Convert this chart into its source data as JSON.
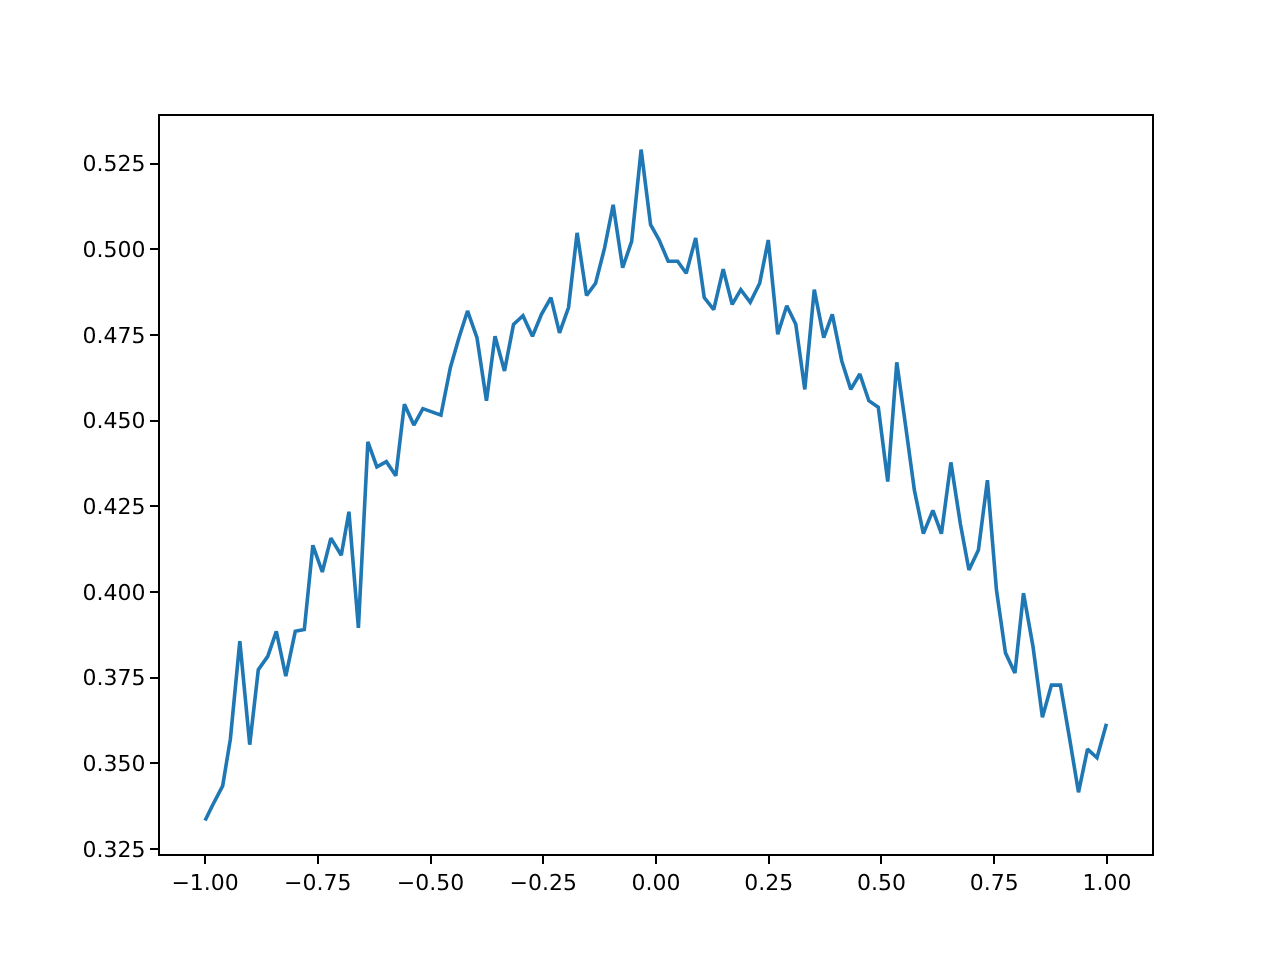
{
  "chart_data": {
    "type": "line",
    "color": "#1f77b4",
    "x": [
      -1.0,
      -0.984,
      -0.961,
      -0.944,
      -0.923,
      -0.901,
      -0.882,
      -0.861,
      -0.842,
      -0.821,
      -0.8,
      -0.78,
      -0.761,
      -0.74,
      -0.721,
      -0.698,
      -0.681,
      -0.66,
      -0.639,
      -0.619,
      -0.598,
      -0.577,
      -0.558,
      -0.537,
      -0.517,
      -0.477,
      -0.456,
      -0.437,
      -0.418,
      -0.397,
      -0.376,
      -0.357,
      -0.336,
      -0.316,
      -0.295,
      -0.274,
      -0.254,
      -0.233,
      -0.214,
      -0.194,
      -0.175,
      -0.154,
      -0.134,
      -0.114,
      -0.095,
      -0.074,
      -0.054,
      -0.033,
      -0.012,
      0.007,
      0.027,
      0.048,
      0.067,
      0.088,
      0.107,
      0.128,
      0.149,
      0.169,
      0.188,
      0.209,
      0.23,
      0.249,
      0.27,
      0.29,
      0.31,
      0.33,
      0.351,
      0.372,
      0.391,
      0.412,
      0.432,
      0.452,
      0.472,
      0.493,
      0.514,
      0.534,
      0.553,
      0.573,
      0.593,
      0.614,
      0.633,
      0.654,
      0.675,
      0.694,
      0.715,
      0.735,
      0.755,
      0.775,
      0.796,
      0.815,
      0.836,
      0.857,
      0.877,
      0.897,
      0.917,
      0.937,
      0.957,
      0.978,
      0.999
    ],
    "values": [
      0.3333,
      0.3376,
      0.3434,
      0.357,
      0.3856,
      0.3554,
      0.3773,
      0.3812,
      0.3885,
      0.3754,
      0.3885,
      0.389,
      0.4136,
      0.4058,
      0.4157,
      0.4107,
      0.4234,
      0.3895,
      0.4438,
      0.4365,
      0.438,
      0.4339,
      0.4548,
      0.4487,
      0.4535,
      0.4516,
      0.4655,
      0.4742,
      0.482,
      0.4742,
      0.4558,
      0.4746,
      0.4645,
      0.4781,
      0.4806,
      0.4746,
      0.481,
      0.4859,
      0.4756,
      0.483,
      0.5048,
      0.4865,
      0.4901,
      0.5004,
      0.513,
      0.4946,
      0.5023,
      0.5291,
      0.5072,
      0.5027,
      0.4965,
      0.4965,
      0.493,
      0.5033,
      0.4859,
      0.4824,
      0.4942,
      0.4839,
      0.4882,
      0.4845,
      0.4901,
      0.5027,
      0.4752,
      0.4835,
      0.4781,
      0.4591,
      0.4882,
      0.4742,
      0.481,
      0.4674,
      0.4591,
      0.4636,
      0.4558,
      0.4539,
      0.4322,
      0.467,
      0.449,
      0.4297,
      0.417,
      0.4238,
      0.417,
      0.4378,
      0.4199,
      0.4064,
      0.4122,
      0.4326,
      0.4006,
      0.3822,
      0.3763,
      0.3996,
      0.3841,
      0.3634,
      0.3728,
      0.3728,
      0.3574,
      0.3415,
      0.3541,
      0.3516,
      0.3615
    ],
    "xlim": [
      -1.1,
      1.1
    ],
    "xticks": [
      {
        "value": -1,
        "label": "−1.00"
      },
      {
        "value": -0.75,
        "label": "−0.75"
      },
      {
        "value": -0.5,
        "label": "−0.50"
      },
      {
        "value": -0.25,
        "label": "−0.25"
      },
      {
        "value": 0,
        "label": "0.00"
      },
      {
        "value": 0.25,
        "label": "0.25"
      },
      {
        "value": 0.5,
        "label": "0.50"
      },
      {
        "value": 0.75,
        "label": "0.75"
      },
      {
        "value": 1,
        "label": "1.00"
      }
    ],
    "ylim": [
      0.3235,
      0.5389
    ],
    "yticks": [
      0.325,
      {
        "value": 0.35,
        "label": "0.350"
      },
      0.375,
      {
        "value": 0.4,
        "label": "0.400"
      },
      0.425,
      {
        "value": 0.45,
        "label": "0.450"
      },
      0.475,
      {
        "value": 0.5,
        "label": "0.500"
      },
      0.525
    ],
    "grid": false,
    "legend": false,
    "marker": "none",
    "line_style": "solid"
  }
}
